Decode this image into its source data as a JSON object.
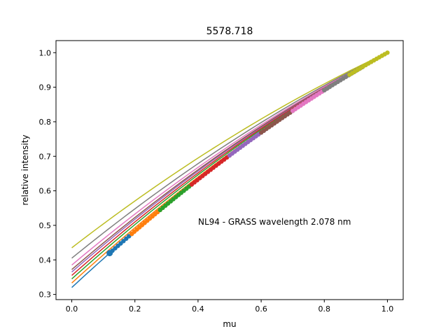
{
  "chart_data": {
    "type": "scatter",
    "title": "5578.718",
    "xlabel": "mu",
    "ylabel": "relative intensity",
    "annotation": "NL94 - GRASS wavelength 2.078 nm",
    "xlim": [
      -0.05,
      1.05
    ],
    "ylim": [
      0.285,
      1.035
    ],
    "xticks": [
      0.0,
      0.2,
      0.4,
      0.6,
      0.8,
      1.0
    ],
    "xtick_labels": [
      "0.0",
      "0.2",
      "0.4",
      "0.6",
      "0.8",
      "1.0"
    ],
    "yticks": [
      0.3,
      0.4,
      0.5,
      0.6,
      0.7,
      0.8,
      0.9,
      1.0
    ],
    "ytick_labels": [
      "0.3",
      "0.4",
      "0.5",
      "0.6",
      "0.7",
      "0.8",
      "0.9",
      "1.0"
    ],
    "grid": false,
    "series": [
      {
        "color": "#1f77b4",
        "fit_intercept": 0.32,
        "mu_range": [
          0.12,
          0.19
        ]
      },
      {
        "color": "#ff7f0e",
        "fit_intercept": 0.333,
        "mu_range": [
          0.19,
          0.28
        ]
      },
      {
        "color": "#2ca02c",
        "fit_intercept": 0.345,
        "mu_range": [
          0.28,
          0.38
        ]
      },
      {
        "color": "#d62728",
        "fit_intercept": 0.355,
        "mu_range": [
          0.38,
          0.5
        ]
      },
      {
        "color": "#9467bd",
        "fit_intercept": 0.365,
        "mu_range": [
          0.5,
          0.7
        ]
      },
      {
        "color": "#8c564b",
        "fit_intercept": 0.372,
        "mu_range": [
          0.6,
          0.7
        ]
      },
      {
        "color": "#e377c2",
        "fit_intercept": 0.385,
        "mu_range": [
          0.7,
          0.81
        ]
      },
      {
        "color": "#7f7f7f",
        "fit_intercept": 0.405,
        "mu_range": [
          0.8,
          0.92
        ]
      },
      {
        "color": "#bcbd22",
        "fit_intercept": 0.435,
        "mu_range": [
          0.88,
          1.0
        ]
      }
    ]
  }
}
